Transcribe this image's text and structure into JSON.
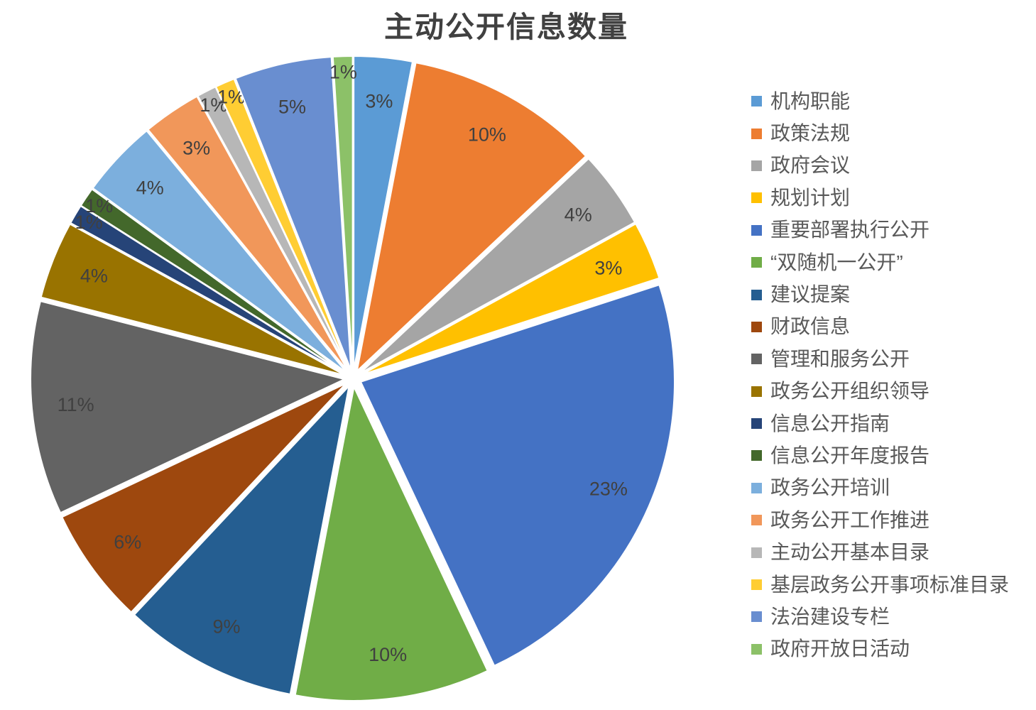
{
  "chart_data": {
    "type": "pie",
    "title": "主动公开信息数量",
    "legend_position": "right",
    "direction": "clockwise",
    "start_angle_deg": 0,
    "data_label_format": "percent",
    "grid": false,
    "categories": [
      "机构职能",
      "政策法规",
      "政府会议",
      "规划计划",
      "重要部署执行公开",
      "“双随机一公开”",
      "建议提案",
      "财政信息",
      "管理和服务公开",
      "政务公开组织领导",
      "信息公开指南",
      "信息公开年度报告",
      "政务公开培训",
      "政务公开工作推进",
      "主动公开基本目录",
      "基层政务公开事项标准目录",
      "法治建设专栏",
      "政府开放日活动"
    ],
    "values_percent": [
      3,
      10,
      4,
      3,
      23,
      10,
      9,
      6,
      11,
      4,
      1,
      1,
      4,
      3,
      1,
      1,
      5,
      1
    ],
    "data_labels": [
      "3%",
      "10%",
      "4%",
      "3%",
      "23%",
      "10%",
      "9%",
      "6%",
      "11%",
      "4%",
      "1%",
      "1%",
      "4%",
      "3%",
      "1%",
      "1%",
      "5%",
      "1%"
    ],
    "colors": [
      "#5B9BD5",
      "#ED7D31",
      "#A5A5A5",
      "#FFC000",
      "#4472C4",
      "#70AD47",
      "#255E91",
      "#9E480E",
      "#636363",
      "#997300",
      "#264478",
      "#43682B",
      "#7CAFDD",
      "#F1975A",
      "#B7B7B7",
      "#FFCD33",
      "#698ED0",
      "#8CC168"
    ]
  },
  "style": {
    "title_color": "#404040",
    "data_label_color": "#404040",
    "legend_text_color": "#595959",
    "slice_border_color": "#ffffff",
    "background": "#ffffff"
  }
}
